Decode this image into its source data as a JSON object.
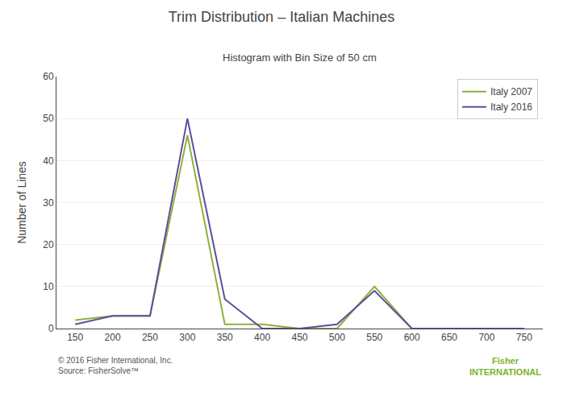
{
  "chart_data": {
    "type": "line",
    "title": "Trim Distribution – Italian Machines",
    "subtitle": "Histogram with Bin Size of 50 cm",
    "y_label": "Number of Lines",
    "x": [
      150,
      200,
      250,
      300,
      350,
      400,
      450,
      500,
      550,
      600,
      650,
      700,
      750
    ],
    "series": [
      {
        "name": "Italy 2007",
        "color": "#8db23a",
        "values": [
          2,
          3,
          3,
          46,
          1,
          1,
          0,
          0,
          10,
          0,
          0,
          0,
          0
        ]
      },
      {
        "name": "Italy 2016",
        "color": "#5b4ea0",
        "values": [
          1,
          3,
          3,
          50,
          7,
          0,
          0,
          1,
          9,
          0,
          0,
          0,
          0
        ]
      }
    ],
    "xlim": [
      125,
      775
    ],
    "ylim": [
      0,
      60
    ],
    "xticks": [
      150,
      200,
      250,
      300,
      350,
      400,
      450,
      500,
      550,
      600,
      650,
      700,
      750
    ],
    "yticks": [
      0,
      10,
      20,
      30,
      40,
      50,
      60
    ],
    "grid": true,
    "legend": "upper right",
    "annotations": [
      "© 2016 Fisher International, Inc.",
      "Source: FisherSolve™",
      "Fisher",
      "INTERNATIONAL"
    ]
  }
}
